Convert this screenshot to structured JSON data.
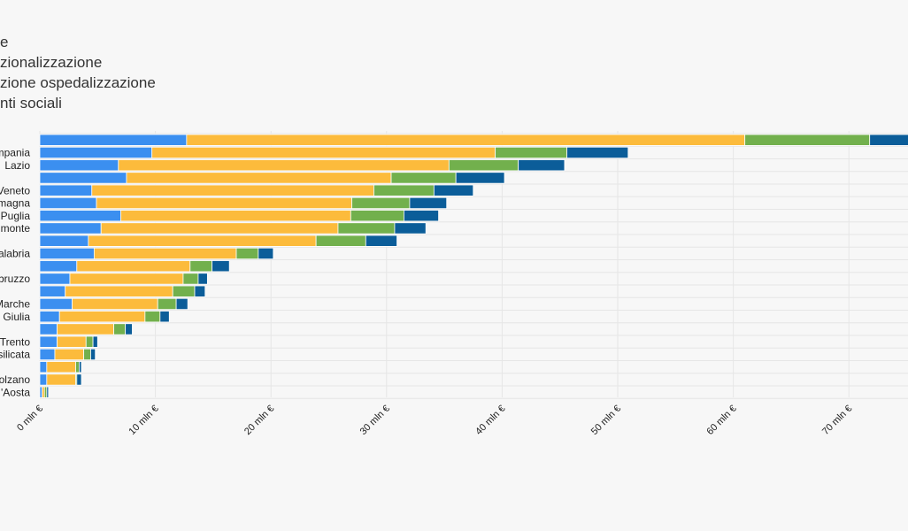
{
  "chart_data": {
    "type": "bar",
    "orientation": "horizontal",
    "stacked": true,
    "legend_position": "top-left",
    "grid": true,
    "x_unit_suffix": " mln €",
    "xlim": [
      0,
      75
    ],
    "x_ticks": [
      0,
      10,
      20,
      30,
      40,
      50,
      60,
      70
    ],
    "x_tick_labels": [
      "0 mln €",
      "10 mln €",
      "20 mln €",
      "30 mln €",
      "40 mln €",
      "50 mln €",
      "60 mln €",
      "70 mln €"
    ],
    "categories": [
      "",
      "Campania",
      "Lazio",
      "",
      "Veneto",
      "Emilia-Romagna",
      "Puglia",
      "Piemonte",
      "",
      "Calabria",
      "",
      "Abruzzo",
      "",
      "Marche",
      "Friuli-Venezia Giulia",
      "",
      "PA Trento",
      "Basilicata",
      "",
      "PA Bolzano",
      "Valle d'Aosta"
    ],
    "category_labels": [
      "",
      "mpania",
      "Lazio",
      "",
      "Veneto",
      "magna",
      "Puglia",
      "monte",
      "",
      "alabria",
      "",
      "bruzzo",
      "",
      "Marche",
      "Giulia",
      "",
      "Trento",
      "silicata",
      "",
      "olzano",
      "'Aosta"
    ],
    "series": [
      {
        "name": "e",
        "color": "#3b8ff0",
        "values": [
          12.7,
          9.7,
          6.8,
          7.5,
          4.5,
          4.9,
          7.0,
          5.3,
          4.2,
          4.7,
          3.2,
          2.6,
          2.2,
          2.8,
          1.7,
          1.5,
          1.5,
          1.3,
          0.6,
          0.6,
          0.2
        ]
      },
      {
        "name": "zionalizzazione",
        "color": "#fcbb3c",
        "values": [
          48.3,
          29.7,
          28.6,
          22.9,
          24.4,
          22.1,
          19.9,
          20.5,
          19.7,
          12.3,
          9.8,
          9.8,
          9.3,
          7.4,
          7.4,
          4.9,
          2.5,
          2.5,
          2.5,
          2.5,
          0.2
        ]
      },
      {
        "name": "zione ospedalizzazione",
        "color": "#72b04d",
        "values": [
          10.8,
          6.2,
          6.0,
          5.6,
          5.2,
          5.0,
          4.6,
          4.9,
          4.3,
          1.9,
          1.9,
          1.3,
          1.9,
          1.6,
          1.3,
          1.0,
          0.6,
          0.6,
          0.3,
          0.1,
          0.2
        ]
      },
      {
        "name": "nti sociali",
        "color": "#0b5d99",
        "values": [
          4.5,
          5.3,
          4.0,
          4.2,
          3.4,
          3.2,
          3.0,
          2.7,
          2.7,
          1.3,
          1.5,
          0.8,
          0.9,
          1.0,
          0.8,
          0.6,
          0.4,
          0.4,
          0.2,
          0.4,
          0.15
        ]
      }
    ]
  }
}
